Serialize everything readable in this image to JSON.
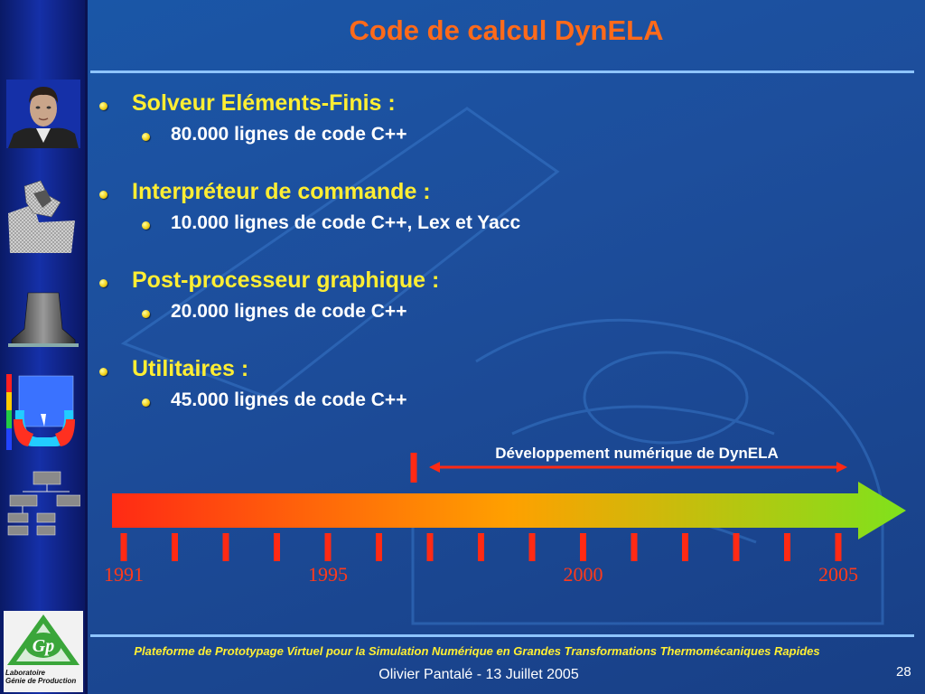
{
  "slide": {
    "title": "Code de calcul DynELA",
    "page_number": "28",
    "footer_title": "Plateforme de Prototypage Virtuel pour la Simulation Numérique en Grandes Transformations Thermomécaniques Rapides",
    "footer_author": "Olivier Pantalé - 13 Juillet 2005",
    "colors": {
      "title": "#ff6a1a",
      "level1": "#ffee33",
      "level2": "#ffffff",
      "years": "#ff3a1a"
    }
  },
  "bullets": [
    {
      "label": "Solveur Eléments-Finis :",
      "sub": "80.000 lignes de code C++"
    },
    {
      "label": "Interpréteur de commande :",
      "sub": "10.000 lignes de code C++, Lex et Yacc"
    },
    {
      "label": "Post-processeur graphique :",
      "sub": "20.000 lignes de code C++"
    },
    {
      "label": "Utilitaires :",
      "sub": "45.000 lignes de code C++"
    }
  ],
  "timeline": {
    "dev_label": "Développement numérique de DynELA",
    "year_labels": [
      "1991",
      "1995",
      "2000",
      "2005"
    ],
    "start_year": 1991,
    "end_year": 2005,
    "dev_start_year": 1997,
    "arrow_colors": [
      "#ff2a14",
      "#ffa000",
      "#7fe21c"
    ]
  },
  "sidebar": {
    "logo_line1": "Laboratoire",
    "logo_line2": "Génie de Production",
    "logo_initials": "Gp"
  }
}
